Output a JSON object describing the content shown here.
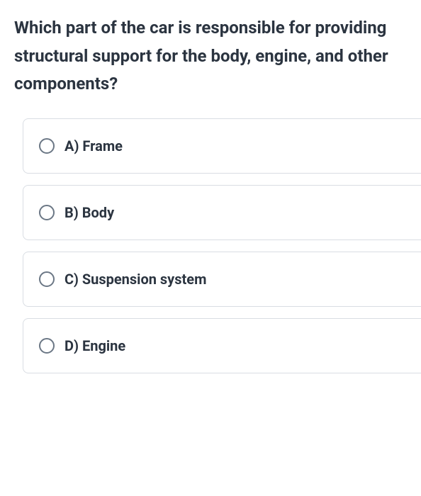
{
  "question": {
    "text": "Which part of the car is responsible for providing structural support for the body, engine, and other components?",
    "font_size": 24,
    "font_weight": 700,
    "color": "#2b3440",
    "line_height": 1.65
  },
  "options": [
    {
      "key": "A",
      "label": "A) Frame",
      "selected": false
    },
    {
      "key": "B",
      "label": "B) Body",
      "selected": false
    },
    {
      "key": "C",
      "label": "C) Suspension system",
      "selected": false
    },
    {
      "key": "D",
      "label": "D) Engine",
      "selected": false
    }
  ],
  "style": {
    "option_border_color": "#d9dde3",
    "option_border_radius": 8,
    "radio_border_color": "#6b7785",
    "radio_size": 22,
    "option_font_size": 20,
    "option_font_weight": 700,
    "option_gap": 16,
    "background_color": "#ffffff"
  }
}
